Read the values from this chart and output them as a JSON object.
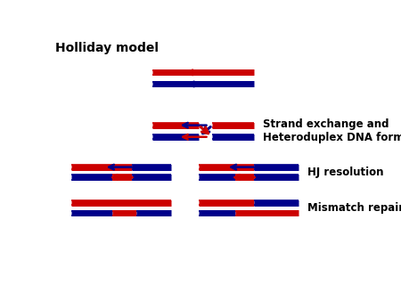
{
  "title": "Holliday model",
  "label_strand_exchange": "Strand exchange and\nHeteroduplex DNA formation",
  "label_hj": "HJ resolution",
  "label_mismatch": "Mismatch repair",
  "red": "#cc0000",
  "blue": "#00008b",
  "bg": "#ffffff",
  "title_fontsize": 10,
  "label_fontsize": 8.5
}
